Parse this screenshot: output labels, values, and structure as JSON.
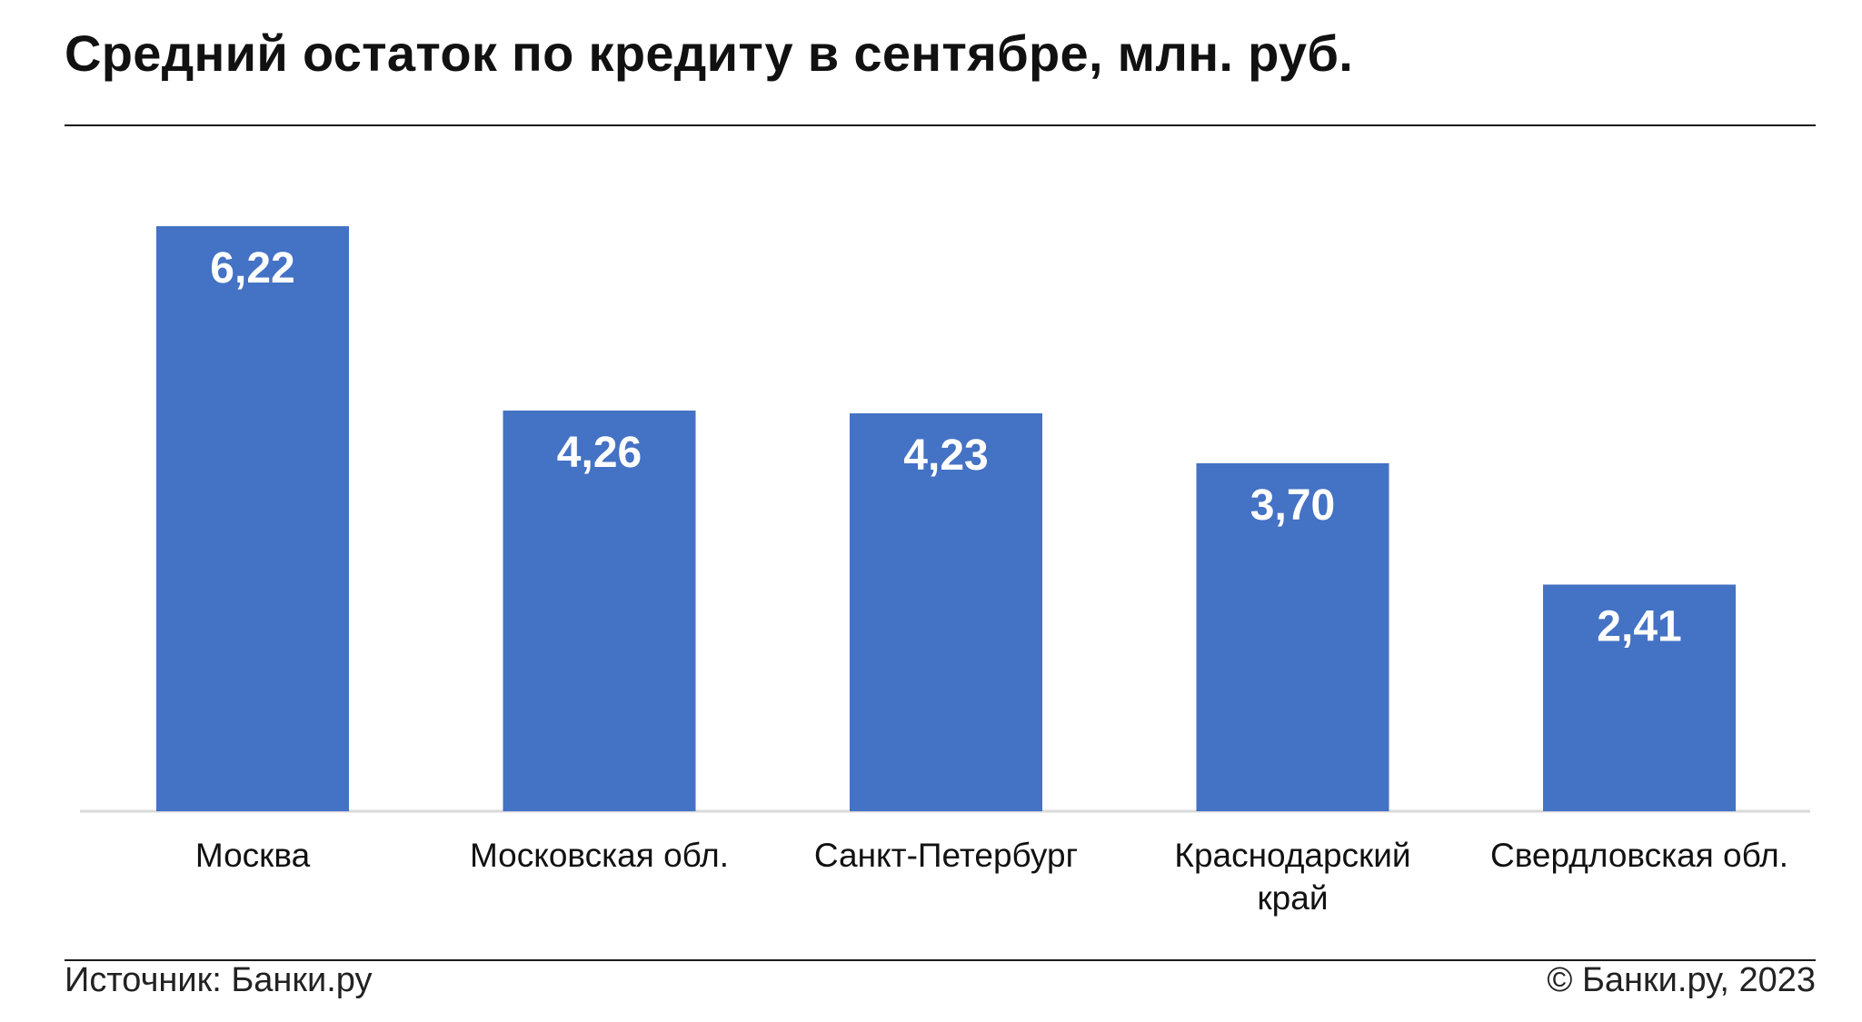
{
  "title": "Средний остаток по кредиту в сентябре, млн. руб.",
  "footer": {
    "source": "Источник: Банки.ру",
    "copyright": "© Банки.ру, 2023"
  },
  "colors": {
    "bar": "#4472C4",
    "bar_label": "#ffffff",
    "axis": "#d9d9d9",
    "text": "#111111"
  },
  "chart_data": {
    "type": "bar",
    "title": "Средний остаток по кредиту в сентябре, млн. руб.",
    "categories": [
      [
        "Москва"
      ],
      [
        "Московская обл."
      ],
      [
        "Санкт-Петербург"
      ],
      [
        "Краснодарский",
        "край"
      ],
      [
        "Свердловская обл."
      ]
    ],
    "values": [
      6.22,
      4.26,
      4.23,
      3.7,
      2.41
    ],
    "value_labels": [
      "6,22",
      "4,26",
      "4,23",
      "3,70",
      "2,41"
    ],
    "xlabel": "",
    "ylabel": "",
    "ylim": [
      0,
      6.22
    ],
    "grid": false,
    "legend": "none"
  }
}
